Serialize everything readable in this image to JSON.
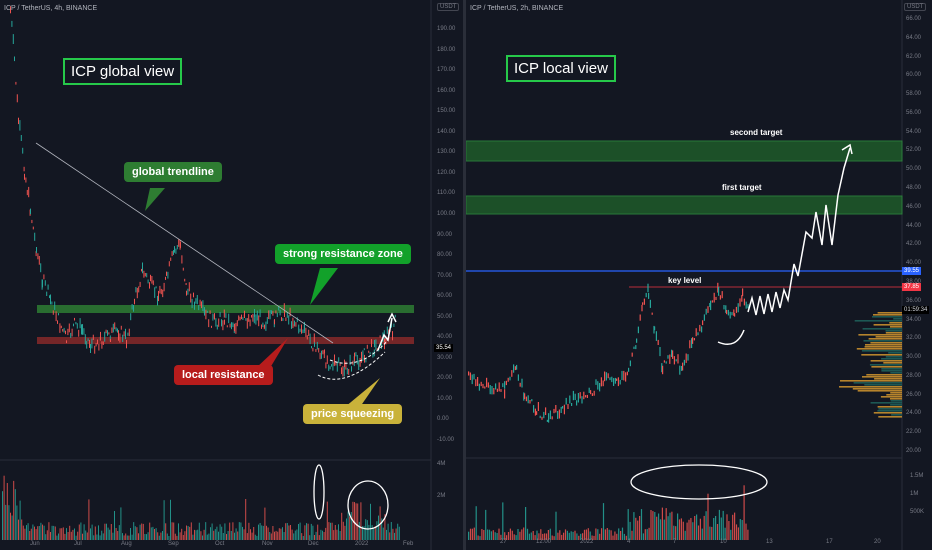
{
  "left": {
    "header": "ICP / TetherUS, 4h, BINANCE",
    "currency": "USDT",
    "title": "ICP global view",
    "y_ticks": [
      "190.00",
      "180.00",
      "170.00",
      "160.00",
      "150.00",
      "140.00",
      "130.00",
      "120.00",
      "110.00",
      "100.00",
      "90.00",
      "80.00",
      "70.00",
      "60.00",
      "50.00",
      "40.00",
      "30.00",
      "20.00",
      "10.00",
      "0.00",
      "-10.00"
    ],
    "vol_ticks": [
      "4M",
      "2M"
    ],
    "x_ticks": [
      "Jun",
      "Jul",
      "Aug",
      "Sep",
      "Oct",
      "Nov",
      "Dec",
      "2022",
      "Feb"
    ],
    "price_tag": "35.54",
    "callouts": {
      "trendline": "global trendline",
      "resistance_zone": "strong resistance zone",
      "local_resistance": "local resistance",
      "squeezing": "price squeezing"
    },
    "colors": {
      "trendline": "#2e7d32",
      "resistance_zone": "#12a12a",
      "local_resistance": "#b71c1c",
      "squeezing": "#c9b23a"
    }
  },
  "right": {
    "header": "ICP / TetherUS, 2h, BINANCE",
    "currency": "USDT",
    "title": "ICP local view",
    "y_ticks": [
      "66.00",
      "64.00",
      "62.00",
      "60.00",
      "58.00",
      "56.00",
      "54.00",
      "52.00",
      "50.00",
      "48.00",
      "46.00",
      "44.00",
      "42.00",
      "40.00",
      "38.00",
      "36.00",
      "34.00",
      "32.00",
      "30.00",
      "28.00",
      "26.00",
      "24.00",
      "22.00",
      "20.00"
    ],
    "vol_ticks": [
      "1.5M",
      "1M",
      "500K"
    ],
    "x_ticks": [
      "27",
      "12:00",
      "2022",
      "4",
      "7",
      "10",
      "13",
      "17",
      "20"
    ],
    "tags": {
      "blue": "39.55",
      "red": "37.85",
      "clock": "01:59:34"
    },
    "labels": {
      "second_target": "second target",
      "first_target": "first target",
      "key_level": "key level"
    },
    "colors": {
      "blue_line": "#2962ff",
      "red_line": "#f23645",
      "target_zone": "#1e5b2a"
    }
  }
}
